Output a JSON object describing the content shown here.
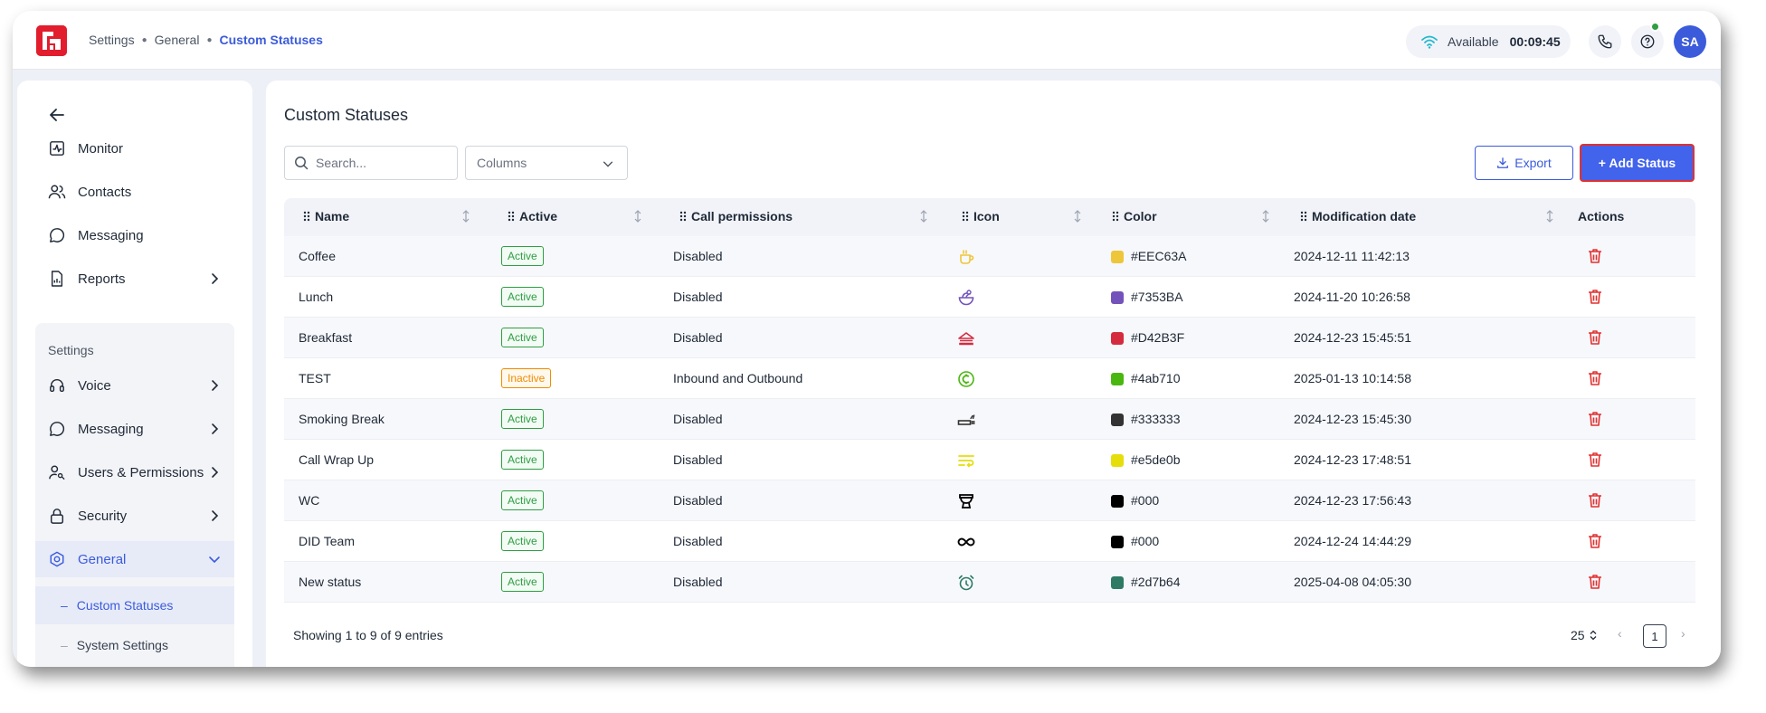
{
  "breadcrumb": [
    "Settings",
    "General",
    "Custom Statuses"
  ],
  "header": {
    "status_label": "Available",
    "timer": "00:09:45",
    "avatar_initials": "SA"
  },
  "sidebar": {
    "items": [
      {
        "label": "Monitor",
        "icon": "monitor-icon"
      },
      {
        "label": "Contacts",
        "icon": "users-icon"
      },
      {
        "label": "Messaging",
        "icon": "chat-icon"
      },
      {
        "label": "Reports",
        "icon": "report-icon"
      }
    ],
    "settings_label": "Settings",
    "settings_items": [
      {
        "label": "Voice",
        "icon": "headset-icon"
      },
      {
        "label": "Messaging",
        "icon": "chat-icon"
      },
      {
        "label": "Users & Permissions",
        "icon": "user-key-icon"
      },
      {
        "label": "Security",
        "icon": "lock-icon"
      },
      {
        "label": "General",
        "icon": "hexagon-gear-icon"
      }
    ],
    "sub_items": [
      "Custom Statuses",
      "System Settings"
    ]
  },
  "main": {
    "title": "Custom Statuses",
    "search_placeholder": "Search...",
    "columns_label": "Columns",
    "export_label": "Export",
    "add_label": "+ Add Status"
  },
  "table": {
    "headers": [
      "Name",
      "Active",
      "Call permissions",
      "Icon",
      "Color",
      "Modification date",
      "Actions"
    ],
    "rows": [
      {
        "name": "Coffee",
        "active": "Active",
        "permissions": "Disabled",
        "icon": "coffee-icon",
        "color": "#EEC63A",
        "date": "2024-12-11 11:42:13"
      },
      {
        "name": "Lunch",
        "active": "Active",
        "permissions": "Disabled",
        "icon": "salad-bowl-icon",
        "color": "#7353BA",
        "date": "2024-11-20 10:26:58"
      },
      {
        "name": "Breakfast",
        "active": "Active",
        "permissions": "Disabled",
        "icon": "sandwich-icon",
        "color": "#D42B3F",
        "date": "2024-12-23 15:45:51"
      },
      {
        "name": "TEST",
        "active": "Inactive",
        "permissions": "Inbound and Outbound",
        "icon": "coin-icon",
        "color": "#4ab710",
        "date": "2025-01-13 10:14:58"
      },
      {
        "name": "Smoking Break",
        "active": "Active",
        "permissions": "Disabled",
        "icon": "cigarette-icon",
        "color": "#333333",
        "date": "2024-12-23 15:45:30"
      },
      {
        "name": "Call Wrap Up",
        "active": "Active",
        "permissions": "Disabled",
        "icon": "wrap-text-icon",
        "color": "#e5de0b",
        "date": "2024-12-23 17:48:51"
      },
      {
        "name": "WC",
        "active": "Active",
        "permissions": "Disabled",
        "icon": "toilet-icon",
        "color": "#000",
        "date": "2024-12-23 17:56:43"
      },
      {
        "name": "DID Team",
        "active": "Active",
        "permissions": "Disabled",
        "icon": "infinity-icon",
        "color": "#000",
        "date": "2024-12-24 14:44:29"
      },
      {
        "name": "New status",
        "active": "Active",
        "permissions": "Disabled",
        "icon": "alarm-clock-icon",
        "color": "#2d7b64",
        "date": "2025-04-08 04:05:30"
      }
    ]
  },
  "footer": {
    "info": "Showing 1 to 9 of 9 entries",
    "page_size": "25",
    "current_page": "1"
  },
  "colors": {
    "accent": "#3b5bdb",
    "primary_button": "#4263eb",
    "active_badge": "#2f9e44",
    "inactive_badge": "#f08c00",
    "delete": "#e03131"
  }
}
